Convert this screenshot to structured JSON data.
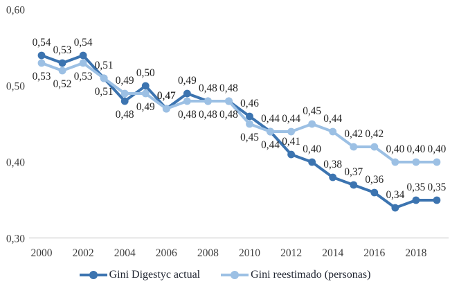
{
  "chart_data": {
    "type": "line",
    "x": [
      2000,
      2001,
      2002,
      2003,
      2004,
      2005,
      2006,
      2007,
      2008,
      2009,
      2010,
      2011,
      2012,
      2013,
      2014,
      2015,
      2016,
      2017,
      2018,
      2019
    ],
    "xtick_labels": [
      "2000",
      "2002",
      "2004",
      "2006",
      "2008",
      "2010",
      "2012",
      "2014",
      "2016",
      "2018"
    ],
    "xtick_values": [
      2000,
      2002,
      2004,
      2006,
      2008,
      2010,
      2012,
      2014,
      2016,
      2018
    ],
    "ytick_labels": [
      "0,60",
      "0,50",
      "0,40",
      "0,30"
    ],
    "ytick_values": [
      0.6,
      0.5,
      0.4,
      0.3
    ],
    "ylim": [
      0.3,
      0.6
    ],
    "xlim": [
      2000,
      2019
    ],
    "grid": false,
    "legend_position": "bottom",
    "decimal_separator": ",",
    "colors": {
      "axis_line": "#D9D9D9",
      "tick_text": "#3F3F3F",
      "data_label_text": "#1F1F1F"
    },
    "series": [
      {
        "name": "Gini Digestyc actual",
        "color": "#3C74B0",
        "values": [
          0.54,
          0.53,
          0.54,
          0.51,
          0.48,
          0.5,
          0.47,
          0.49,
          0.48,
          0.48,
          0.46,
          0.44,
          0.41,
          0.4,
          0.38,
          0.37,
          0.36,
          0.34,
          0.35,
          0.35
        ],
        "labels": [
          "0,54",
          "0,53",
          "0,54",
          "0,51",
          "0,48",
          "0,50",
          "0,47",
          "0,49",
          "0,48",
          "0,48",
          "0,46",
          "0,44",
          "0,41",
          "0,40",
          "0,38",
          "0,37",
          "0,36",
          "0,34",
          "0,35",
          "0,35"
        ],
        "label_side": [
          "above",
          "above",
          "above",
          "above",
          "below",
          "above",
          "above",
          "above",
          "above",
          "above",
          "above",
          "below",
          "above",
          "above",
          "above",
          "above",
          "above",
          "above",
          "above",
          "above"
        ]
      },
      {
        "name": "Gini reestimado (personas)",
        "color": "#9CC0E4",
        "values": [
          0.53,
          0.52,
          0.53,
          0.51,
          0.49,
          0.49,
          0.47,
          0.48,
          0.48,
          0.48,
          0.45,
          0.44,
          0.44,
          0.45,
          0.44,
          0.42,
          0.42,
          0.4,
          0.4,
          0.4
        ],
        "labels": [
          "0,53",
          "0,52",
          "0,53",
          "0,51",
          "0,49",
          "0,49",
          "0,47",
          "0,48",
          "0,48",
          "0,48",
          "0,45",
          "0,44",
          "0,44",
          "0,45",
          "0,44",
          "0,42",
          "0,42",
          "0,40",
          "0,40",
          "0,40"
        ],
        "label_side": [
          "below",
          "below",
          "below",
          "below",
          "above",
          "below",
          "above",
          "below",
          "below",
          "below",
          "below",
          "above",
          "above",
          "above",
          "above",
          "above",
          "above",
          "above",
          "above",
          "above"
        ]
      }
    ]
  }
}
